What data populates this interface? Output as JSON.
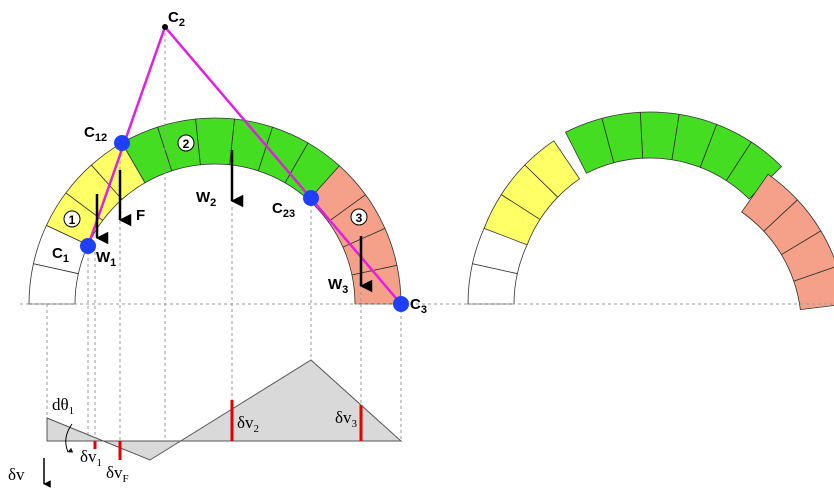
{
  "labels": [
    {
      "text": "C",
      "sub": "2"
    },
    {
      "text": "C",
      "sub": "12"
    },
    {
      "text": "C",
      "sub": "1"
    },
    {
      "text": "W",
      "sub": "1"
    },
    {
      "text": "F"
    },
    {
      "text": "W",
      "sub": "2"
    },
    {
      "text": "C",
      "sub": "23"
    },
    {
      "text": "W",
      "sub": "3"
    },
    {
      "text": "C",
      "sub": "3"
    },
    {
      "text": "dθ",
      "sub": "1"
    },
    {
      "text": "δv",
      "sub": "1"
    },
    {
      "text": "δv",
      "sub": "F"
    },
    {
      "text": "δv",
      "sub": "2"
    },
    {
      "text": "δv",
      "sub": "3"
    },
    {
      "text": "δv"
    }
  ],
  "blocks": [
    "1",
    "2",
    "3"
  ]
}
